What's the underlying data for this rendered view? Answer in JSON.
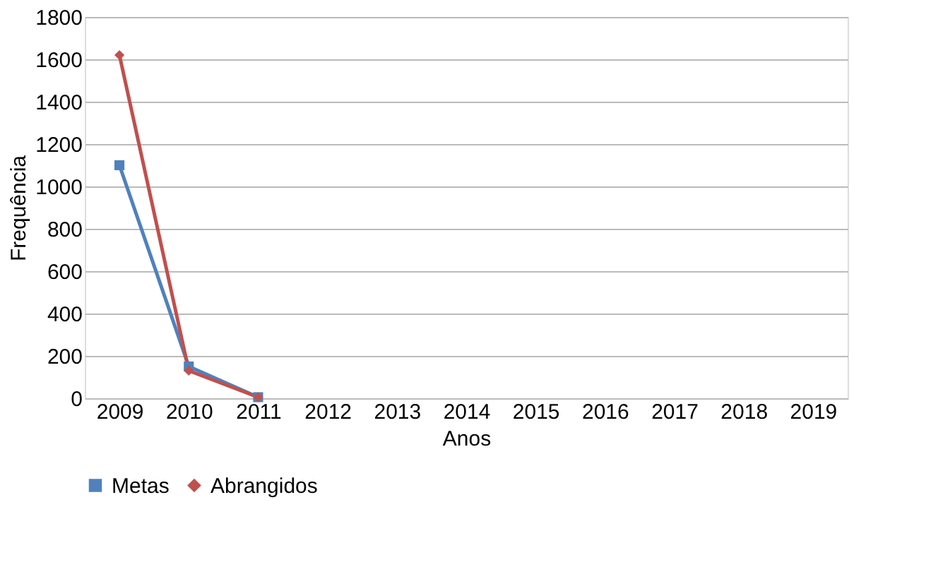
{
  "chart_data": {
    "type": "line",
    "xlabel": "Anos",
    "ylabel": "Frequência",
    "categories": [
      "2009",
      "2010",
      "2011",
      "2012",
      "2013",
      "2014",
      "2015",
      "2016",
      "2017",
      "2018",
      "2019"
    ],
    "series": [
      {
        "name": "Metas",
        "color": "#4f81bd",
        "marker": "square",
        "values": [
          1100,
          150,
          5,
          null,
          null,
          null,
          null,
          null,
          null,
          null,
          null
        ]
      },
      {
        "name": "Abrangidos",
        "color": "#c0504d",
        "marker": "diamond",
        "values": [
          1620,
          130,
          5,
          null,
          null,
          null,
          null,
          null,
          null,
          null,
          null
        ]
      }
    ],
    "ylim": [
      0,
      1800
    ],
    "yticks": [
      0,
      200,
      400,
      600,
      800,
      1000,
      1200,
      1400,
      1600,
      1800
    ],
    "grid": "y",
    "legend": "bottom",
    "line_style": "solid"
  }
}
